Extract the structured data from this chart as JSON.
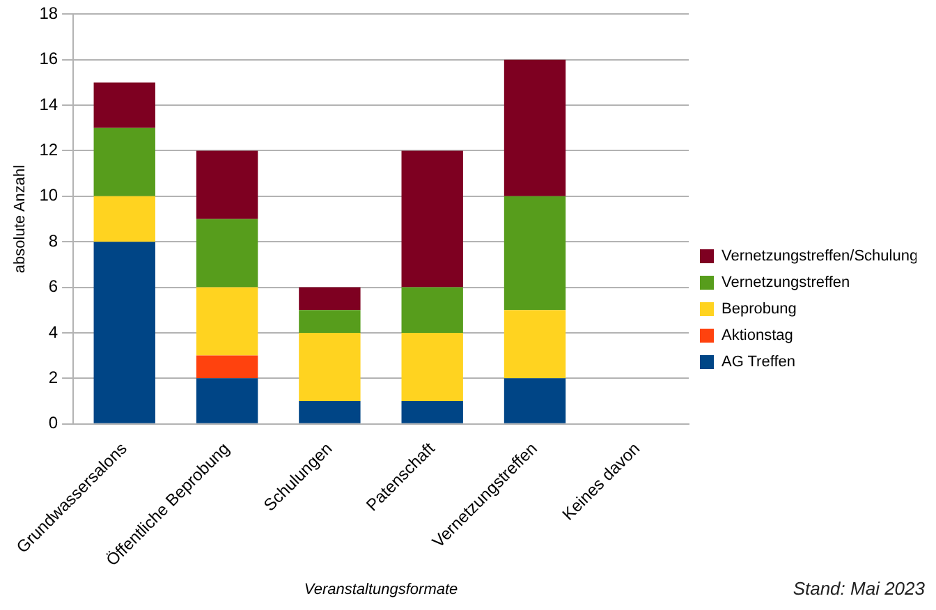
{
  "chart_data": {
    "type": "bar",
    "stacked": true,
    "xlabel": "Veranstaltungsformate",
    "ylabel": "absolute Anzahl",
    "categories": [
      "Grundwassersalons",
      "Öffentliche Beprobung",
      "Schulungen",
      "Patenschaft",
      "Vernetzungstreffen",
      "Keines davon"
    ],
    "series": [
      {
        "name": "AG Treffen",
        "color": "#004586",
        "values": [
          8,
          2,
          1,
          1,
          2,
          0
        ]
      },
      {
        "name": "Aktionstag",
        "color": "#ff420e",
        "values": [
          0,
          1,
          0,
          0,
          0,
          0
        ]
      },
      {
        "name": "Beprobung",
        "color": "#ffd320",
        "values": [
          2,
          3,
          3,
          3,
          3,
          0
        ]
      },
      {
        "name": "Vernetzungstreffen",
        "color": "#579d1c",
        "values": [
          3,
          3,
          1,
          2,
          5,
          0
        ]
      },
      {
        "name": "Vernetzungstreffen/Schulung",
        "color": "#7e0021",
        "values": [
          2,
          3,
          1,
          6,
          6,
          0
        ]
      }
    ],
    "ylim": [
      0,
      18
    ],
    "yticks": [
      0,
      2,
      4,
      6,
      8,
      10,
      12,
      14,
      16,
      18
    ],
    "grid": "y",
    "legend": "right",
    "annotations": [
      "Stand: Mai 2023"
    ]
  }
}
